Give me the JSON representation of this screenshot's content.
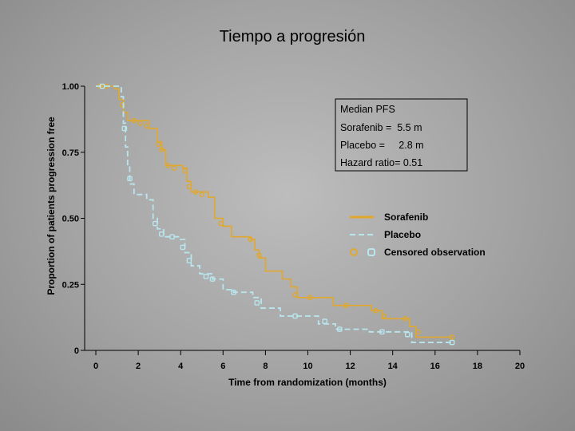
{
  "chart_data": {
    "type": "line",
    "title": "Tiempo a progresión",
    "xlabel": "Time from randomization (months)",
    "ylabel": "Proportion of patients progression free",
    "xlim": [
      0,
      20
    ],
    "ylim": [
      0,
      1
    ],
    "x_ticks": [
      "0",
      "2",
      "4",
      "6",
      "8",
      "10",
      "12",
      "14",
      "16",
      "18",
      "20"
    ],
    "y_ticks": [
      {
        "value": 0,
        "label": "0"
      },
      {
        "value": 0.25,
        "label": "0.25"
      },
      {
        "value": 0.5,
        "label": "0.50"
      },
      {
        "value": 0.75,
        "label": "0.75"
      },
      {
        "value": 1,
        "label": "1.00"
      }
    ],
    "annotation_box": {
      "heading": "Median PFS",
      "lines": [
        "Sorafenib =  5.5 m",
        "Placebo =     2.8 m",
        "Hazard ratio= 0.51"
      ]
    },
    "legend": {
      "position": "right",
      "censored_label": "Censored observation"
    },
    "series": [
      {
        "name": "Sorafenib",
        "color": "#e0a82e",
        "style": "solid",
        "steps": [
          [
            0,
            1
          ],
          [
            0.9,
            0.99
          ],
          [
            1.1,
            0.95
          ],
          [
            1.3,
            0.9
          ],
          [
            1.5,
            0.87
          ],
          [
            2.5,
            0.84
          ],
          [
            2.9,
            0.79
          ],
          [
            3.1,
            0.76
          ],
          [
            3.3,
            0.7
          ],
          [
            4.1,
            0.69
          ],
          [
            4.3,
            0.64
          ],
          [
            4.5,
            0.6
          ],
          [
            5.3,
            0.58
          ],
          [
            5.5,
            0.58
          ],
          [
            5.6,
            0.5
          ],
          [
            6,
            0.47
          ],
          [
            6.4,
            0.43
          ],
          [
            7.3,
            0.42
          ],
          [
            7.5,
            0.38
          ],
          [
            7.7,
            0.35
          ],
          [
            8,
            0.3
          ],
          [
            8.8,
            0.27
          ],
          [
            9.2,
            0.24
          ],
          [
            9.5,
            0.2
          ],
          [
            11.2,
            0.17
          ],
          [
            13,
            0.15
          ],
          [
            13.5,
            0.12
          ],
          [
            14.8,
            0.09
          ],
          [
            15.1,
            0.05
          ],
          [
            16.8,
            0.05
          ]
        ],
        "censored": [
          [
            0.2,
            1
          ],
          [
            0.5,
            1
          ],
          [
            1.25,
            0.93
          ],
          [
            1.8,
            0.87
          ],
          [
            2.1,
            0.86
          ],
          [
            2.4,
            0.85
          ],
          [
            2.95,
            0.78
          ],
          [
            3.1,
            0.76
          ],
          [
            3.4,
            0.7
          ],
          [
            3.7,
            0.69
          ],
          [
            4.2,
            0.68
          ],
          [
            4.4,
            0.62
          ],
          [
            4.7,
            0.6
          ],
          [
            5,
            0.59
          ],
          [
            5.9,
            0.48
          ],
          [
            7.3,
            0.42
          ],
          [
            7.7,
            0.36
          ],
          [
            9.4,
            0.21
          ],
          [
            10.1,
            0.2
          ],
          [
            11.8,
            0.17
          ],
          [
            13.2,
            0.15
          ],
          [
            13.6,
            0.13
          ],
          [
            14.6,
            0.12
          ],
          [
            15.2,
            0.07
          ],
          [
            16.8,
            0.05
          ]
        ]
      },
      {
        "name": "Placebo",
        "color": "#b8e6ee",
        "style": "dashed",
        "steps": [
          [
            0,
            1
          ],
          [
            1.2,
            0.96
          ],
          [
            1.3,
            0.86
          ],
          [
            1.4,
            0.77
          ],
          [
            1.5,
            0.7
          ],
          [
            1.6,
            0.63
          ],
          [
            1.8,
            0.59
          ],
          [
            2.4,
            0.57
          ],
          [
            2.7,
            0.5
          ],
          [
            2.9,
            0.46
          ],
          [
            3.2,
            0.43
          ],
          [
            3.9,
            0.42
          ],
          [
            4.2,
            0.37
          ],
          [
            4.5,
            0.32
          ],
          [
            4.9,
            0.29
          ],
          [
            5.5,
            0.27
          ],
          [
            6,
            0.23
          ],
          [
            6.5,
            0.22
          ],
          [
            7.4,
            0.2
          ],
          [
            7.8,
            0.16
          ],
          [
            8.7,
            0.13
          ],
          [
            10.5,
            0.1
          ],
          [
            11.3,
            0.08
          ],
          [
            12.9,
            0.07
          ],
          [
            14.9,
            0.03
          ],
          [
            16.8,
            0.03
          ]
        ],
        "censored": [
          [
            0.3,
            1
          ],
          [
            1.35,
            0.84
          ],
          [
            1.6,
            0.65
          ],
          [
            2.8,
            0.48
          ],
          [
            3.1,
            0.44
          ],
          [
            3.6,
            0.43
          ],
          [
            4.1,
            0.39
          ],
          [
            4.4,
            0.34
          ],
          [
            5.2,
            0.28
          ],
          [
            5.5,
            0.27
          ],
          [
            6.5,
            0.22
          ],
          [
            7.6,
            0.18
          ],
          [
            9.4,
            0.13
          ],
          [
            10.8,
            0.11
          ],
          [
            11.5,
            0.08
          ],
          [
            13.5,
            0.07
          ],
          [
            14.7,
            0.06
          ],
          [
            16.8,
            0.03
          ]
        ]
      }
    ]
  }
}
